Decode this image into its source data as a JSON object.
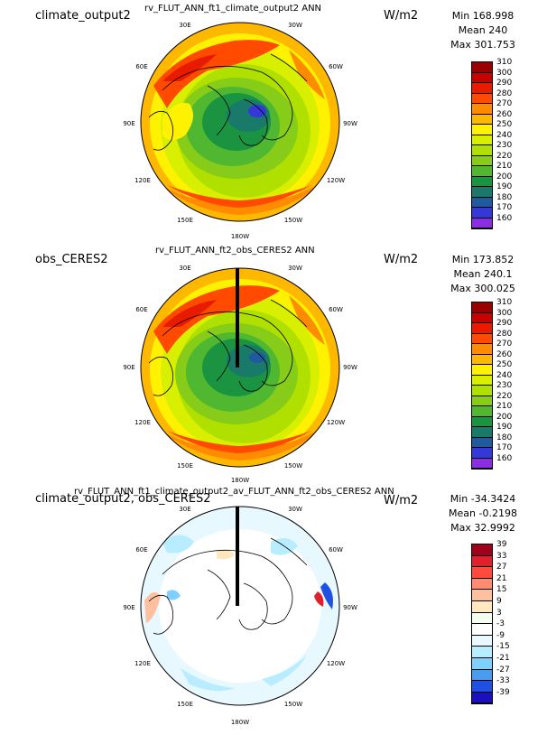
{
  "panels": [
    {
      "case": "climate_output2",
      "title": "rv_FLUT_ANN_ft1_climate_output2  ANN",
      "units": "W/m2",
      "min": "Min 168.998",
      "mean": "Mean 240",
      "max": "Max 301.753",
      "colorbar_labels": [
        "310",
        "300",
        "290",
        "280",
        "270",
        "260",
        "250",
        "240",
        "230",
        "220",
        "210",
        "200",
        "190",
        "180",
        "170",
        "160"
      ],
      "colorbar_colors": [
        "#9b0000",
        "#c80000",
        "#e81a00",
        "#ff4a00",
        "#ff8c00",
        "#ffb800",
        "#fff200",
        "#d8f000",
        "#b0e000",
        "#86cc18",
        "#4fb830",
        "#1a9440",
        "#1a7a6a",
        "#1f5aa0",
        "#3438d8",
        "#8a2ee0"
      ],
      "longitudes": [
        "30E",
        "30W",
        "60E",
        "60W",
        "90E",
        "90W",
        "120E",
        "120W",
        "150E",
        "150W",
        "180W"
      ]
    },
    {
      "case": "obs_CERES2",
      "title": "rv_FLUT_ANN_ft2_obs_CERES2  ANN",
      "units": "W/m2",
      "min": "Min 173.852",
      "mean": "Mean 240.1",
      "max": "Max 300.025",
      "colorbar_labels": [
        "310",
        "300",
        "290",
        "280",
        "270",
        "260",
        "250",
        "240",
        "230",
        "220",
        "210",
        "200",
        "190",
        "180",
        "170",
        "160"
      ],
      "colorbar_colors": [
        "#9b0000",
        "#c80000",
        "#e81a00",
        "#ff4a00",
        "#ff8c00",
        "#ffb800",
        "#fff200",
        "#d8f000",
        "#b0e000",
        "#86cc18",
        "#4fb830",
        "#1a9440",
        "#1a7a6a",
        "#1f5aa0",
        "#3438d8",
        "#8a2ee0"
      ],
      "longitudes": [
        "30E",
        "30W",
        "60E",
        "60W",
        "90E",
        "90W",
        "120E",
        "120W",
        "150E",
        "150W",
        "180W"
      ]
    },
    {
      "case": "climate_output2, obs_CERES2",
      "title": "rv_FLUT_ANN_ft1_climate_output2_av_FLUT_ANN_ft2_obs_CERES2  ANN",
      "units": "W/m2",
      "min": "Min -34.3424",
      "mean": "Mean -0.2198",
      "max": "Max 32.9992",
      "colorbar_labels": [
        "39",
        "33",
        "27",
        "21",
        "15",
        "9",
        "3",
        "-3",
        "-9",
        "-15",
        "-21",
        "-27",
        "-33",
        "-39"
      ],
      "colorbar_colors": [
        "#a0001a",
        "#e0202a",
        "#ff4a40",
        "#ff8c70",
        "#ffc0a0",
        "#ffe8c0",
        "#f4fff0",
        "#ffffff",
        "#e8f8ff",
        "#b8ecff",
        "#80d0ff",
        "#4a9cf0",
        "#2050e0",
        "#1a10c0"
      ],
      "longitudes": [
        "30E",
        "30W",
        "60E",
        "60W",
        "90E",
        "90W",
        "120E",
        "120W",
        "150E",
        "150W",
        "180W"
      ]
    }
  ]
}
